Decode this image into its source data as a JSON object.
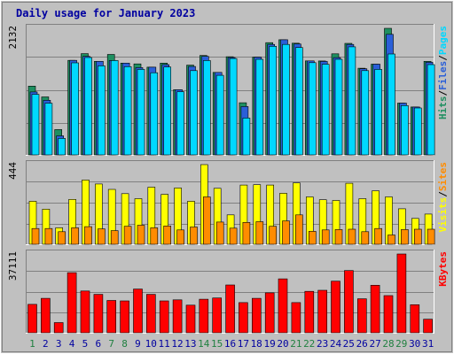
{
  "chart_data": {
    "type": "bar",
    "title": "Daily usage for January 2023",
    "categories": [
      "1",
      "2",
      "3",
      "4",
      "5",
      "6",
      "7",
      "8",
      "9",
      "10",
      "11",
      "12",
      "13",
      "14",
      "15",
      "16",
      "17",
      "18",
      "19",
      "20",
      "21",
      "22",
      "23",
      "24",
      "25",
      "26",
      "27",
      "28",
      "29",
      "30",
      "31"
    ],
    "weekend_days": [
      "1",
      "7",
      "8",
      "14",
      "15",
      "21",
      "22",
      "28",
      "29"
    ],
    "colors": {
      "hits": "#1e8f60",
      "files": "#2a5fd8",
      "pages": "#00d8ff",
      "visits": "#ffff00",
      "sites": "#ff8c00",
      "kbytes": "#ff0000",
      "weekday_label": "#0000a0",
      "weekend_label": "#208040",
      "plot_bg": "#c0c0c0",
      "grid": "#808080"
    },
    "panels": [
      {
        "name": "hits-files-pages",
        "ymax_label": "2132",
        "ymax": 2132,
        "legend": [
          {
            "text": "Hits",
            "color": "#1e8f60"
          },
          {
            "text": "Files",
            "color": "#2a5fd8"
          },
          {
            "text": "Pages",
            "color": "#00d8ff"
          }
        ],
        "series": [
          {
            "name": "Hits",
            "values": [
              1158,
              976,
              426,
              1592,
              1706,
              1576,
              1692,
              1546,
              1532,
              1478,
              1546,
              1098,
              1512,
              1674,
              1390,
              1654,
              878,
              1646,
              1890,
              1940,
              1882,
              1584,
              1582,
              1702,
              1878,
              1460,
              1528,
              2132,
              872,
              806,
              1576
            ]
          },
          {
            "name": "Files",
            "values": [
              1060,
              920,
              320,
              1592,
              1660,
              1576,
              1590,
              1546,
              1470,
              1478,
              1520,
              1098,
              1490,
              1660,
              1390,
              1640,
              814,
              1646,
              1860,
              1940,
              1868,
              1584,
              1574,
              1638,
              1860,
              1450,
              1528,
              2030,
              872,
              806,
              1560
            ]
          },
          {
            "name": "Pages",
            "values": [
              1020,
              870,
              278,
              1550,
              1640,
              1500,
              1590,
              1486,
              1440,
              1384,
              1480,
              1064,
              1420,
              1590,
              1340,
              1624,
              620,
              1610,
              1830,
              1860,
              1808,
              1554,
              1526,
              1610,
              1820,
              1420,
              1440,
              1700,
              830,
              790,
              1520
            ]
          }
        ]
      },
      {
        "name": "visits-sites",
        "ymax_label": "444",
        "ymax": 444,
        "legend": [
          {
            "text": "Visits",
            "color": "#ffff00"
          },
          {
            "text": "Sites",
            "color": "#ff8c00"
          }
        ],
        "series": [
          {
            "name": "Visits",
            "values": [
              240,
              196,
              92,
              250,
              358,
              336,
              306,
              282,
              254,
              318,
              278,
              314,
              240,
              444,
              312,
              164,
              330,
              332,
              330,
              284,
              342,
              264,
              248,
              244,
              340,
              254,
              298,
              264,
              198,
              144,
              168
            ]
          },
          {
            "name": "Sites",
            "values": [
              88,
              88,
              70,
              92,
              98,
              86,
              76,
              100,
              106,
              92,
              102,
              80,
              96,
              264,
              124,
              90,
              122,
              126,
              100,
              130,
              164,
              72,
              80,
              82,
              84,
              70,
              88,
              52,
              82,
              84,
              84
            ]
          }
        ]
      },
      {
        "name": "kbytes",
        "ymax_label": "37111",
        "ymax": 37111,
        "legend": [
          {
            "text": "KBytes",
            "color": "#ff0000"
          }
        ],
        "series": [
          {
            "name": "KBytes",
            "values": [
              13400,
              16200,
              4800,
              28300,
              19700,
              18100,
              15200,
              15000,
              20600,
              18100,
              15000,
              15500,
              13000,
              15800,
              16400,
              22500,
              14200,
              16200,
              18800,
              25400,
              14200,
              19500,
              20000,
              24300,
              29300,
              16000,
              22400,
              17500,
              37111,
              13200,
              6400
            ]
          }
        ]
      }
    ]
  }
}
